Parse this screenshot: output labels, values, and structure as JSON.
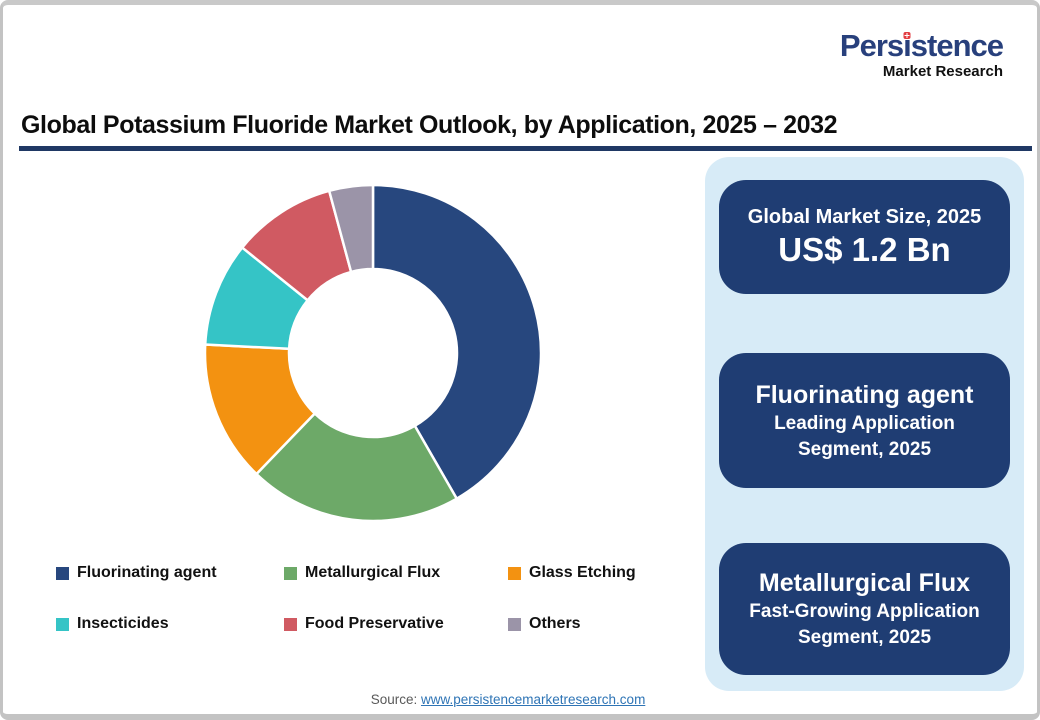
{
  "logo": {
    "word_pre": "Pers",
    "word_i": "ı",
    "word_post": "stence",
    "full_name": "Persistence",
    "tagline": "Market Research",
    "brand_navy": "#28407c",
    "brand_red": "#e23b3f"
  },
  "header": {
    "title": "Global Potassium Fluoride Market Outlook, by Application, 2025 – 2032",
    "underline_color": "#1f3864"
  },
  "chart_data": {
    "type": "pie",
    "title": "Global Potassium Fluoride Market Outlook, by Application, 2025 – 2032",
    "categories": [
      "Fluorinating agent",
      "Metallurgical Flux",
      "Glass Etching",
      "Insecticides",
      "Food Preservative",
      "Others"
    ],
    "values": [
      41.7,
      20.5,
      13.6,
      10.0,
      10.0,
      4.2
    ],
    "unit": "percent share (estimated from arc angles)",
    "colors": [
      "#27477e",
      "#6da968",
      "#f39211",
      "#35c4c6",
      "#d05a62",
      "#9b94a8"
    ],
    "donut_hole_ratio": 0.5,
    "start_angle_deg": 0,
    "direction": "clockwise",
    "legend_position": "bottom",
    "data_labels": false
  },
  "cards": [
    {
      "heading": "Global Market Size, 2025",
      "value": "US$ 1.2 Bn"
    },
    {
      "heading": "Fluorinating agent",
      "sub1": "Leading Application",
      "sub2": "Segment, 2025"
    },
    {
      "heading": "Metallurgical Flux",
      "sub1": "Fast-Growing Application",
      "sub2": "Segment, 2025"
    }
  ],
  "panel": {
    "background": "#d7ebf7",
    "card_background": "#1f3d73"
  },
  "footer": {
    "source_label": "Source:",
    "source_link": "www.persistencemarketresearch.com",
    "link_color": "#2e74b5"
  }
}
